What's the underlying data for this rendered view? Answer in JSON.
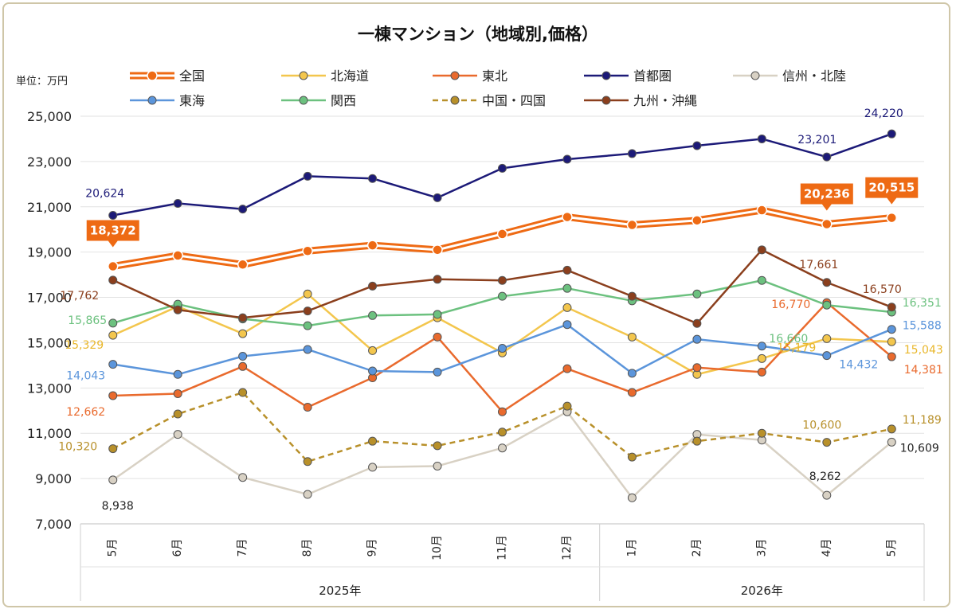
{
  "chart_data": {
    "type": "line",
    "title": "一棟マンション（地域別,価格）",
    "unit_label": "単位：万円",
    "ylim": [
      7000,
      25000
    ],
    "y_ticks": [
      "25,000",
      "23,000",
      "21,000",
      "19,000",
      "17,000",
      "15,000",
      "13,000",
      "11,000",
      "9,000",
      "7,000"
    ],
    "categories": [
      "5月",
      "6月",
      "7月",
      "8月",
      "9月",
      "10月",
      "11月",
      "12月",
      "1月",
      "2月",
      "3月",
      "4月",
      "5月"
    ],
    "years": [
      {
        "label": "2025年",
        "start": 0,
        "end": 7
      },
      {
        "label": "2026年",
        "start": 8,
        "end": 12
      }
    ],
    "legend_position": "top",
    "grid": true,
    "series": [
      {
        "name": "全国",
        "color": "#ee6a14",
        "style": "double",
        "values": [
          18372,
          18850,
          18450,
          19050,
          19300,
          19100,
          19800,
          20550,
          20200,
          20400,
          20850,
          20236,
          20515
        ],
        "labels": [
          {
            "i": 0,
            "text": "18,372",
            "callout": true
          },
          {
            "i": 11,
            "text": "20,236",
            "callout": true
          },
          {
            "i": 12,
            "text": "20,515",
            "callout": true
          }
        ]
      },
      {
        "name": "北海道",
        "color": "#f3c64d",
        "style": "solid",
        "values": [
          15329,
          16600,
          15400,
          17150,
          14650,
          16100,
          14550,
          16550,
          15250,
          13600,
          14300,
          15179,
          15043
        ],
        "labels": [
          {
            "i": 0,
            "text": "15,329"
          },
          {
            "i": 11,
            "text": "15,179"
          },
          {
            "i": 12,
            "text": "15,043"
          }
        ]
      },
      {
        "name": "東北",
        "color": "#e96a2d",
        "style": "solid",
        "values": [
          12662,
          12750,
          13950,
          12150,
          13450,
          15250,
          11950,
          13850,
          12800,
          13900,
          13700,
          16770,
          14381
        ],
        "labels": [
          {
            "i": 0,
            "text": "12,662"
          },
          {
            "i": 11,
            "text": "16,770"
          },
          {
            "i": 12,
            "text": "14,381"
          }
        ]
      },
      {
        "name": "首都圏",
        "color": "#1c1a78",
        "style": "solid",
        "values": [
          20624,
          21150,
          20900,
          22350,
          22250,
          21400,
          22700,
          23100,
          23350,
          23700,
          24000,
          23201,
          24220
        ],
        "labels": [
          {
            "i": 0,
            "text": "20,624"
          },
          {
            "i": 11,
            "text": "23,201"
          },
          {
            "i": 12,
            "text": "24,220"
          }
        ]
      },
      {
        "name": "信州・北陸",
        "color": "#d8d1c4",
        "style": "solid",
        "values": [
          8938,
          10950,
          9050,
          8300,
          9500,
          9550,
          10350,
          11950,
          8150,
          10950,
          10700,
          8262,
          10609
        ],
        "labels": [
          {
            "i": 0,
            "text": "8,938"
          },
          {
            "i": 11,
            "text": "8,262"
          },
          {
            "i": 12,
            "text": "10,609"
          }
        ]
      },
      {
        "name": "東海",
        "color": "#5b95db",
        "style": "solid",
        "values": [
          14043,
          13600,
          14400,
          14700,
          13750,
          13700,
          14750,
          15800,
          13650,
          15150,
          14850,
          14432,
          15588
        ],
        "labels": [
          {
            "i": 0,
            "text": "14,043"
          },
          {
            "i": 11,
            "text": "14,432"
          },
          {
            "i": 12,
            "text": "15,588"
          }
        ]
      },
      {
        "name": "関西",
        "color": "#6cc17f",
        "style": "solid",
        "values": [
          15865,
          16700,
          16050,
          15750,
          16200,
          16250,
          17050,
          17400,
          16850,
          17150,
          17750,
          16660,
          16351
        ],
        "labels": [
          {
            "i": 0,
            "text": "15,865"
          },
          {
            "i": 11,
            "text": "16,660"
          },
          {
            "i": 12,
            "text": "16,351"
          }
        ]
      },
      {
        "name": "中国・四国",
        "color": "#b8902a",
        "style": "dashed",
        "values": [
          10320,
          11850,
          12800,
          9750,
          10650,
          10450,
          11050,
          12200,
          9950,
          10650,
          11000,
          10600,
          11189
        ],
        "labels": [
          {
            "i": 0,
            "text": "10,320"
          },
          {
            "i": 11,
            "text": "10,600"
          },
          {
            "i": 12,
            "text": "11,189"
          }
        ]
      },
      {
        "name": "九州・沖縄",
        "color": "#8b3f1d",
        "style": "solid",
        "values": [
          17762,
          16450,
          16100,
          16400,
          17500,
          17800,
          17750,
          18200,
          17050,
          15850,
          19100,
          17661,
          16570
        ],
        "labels": [
          {
            "i": 0,
            "text": "17,762"
          },
          {
            "i": 11,
            "text": "17,661"
          },
          {
            "i": 12,
            "text": "16,570"
          }
        ]
      }
    ]
  }
}
